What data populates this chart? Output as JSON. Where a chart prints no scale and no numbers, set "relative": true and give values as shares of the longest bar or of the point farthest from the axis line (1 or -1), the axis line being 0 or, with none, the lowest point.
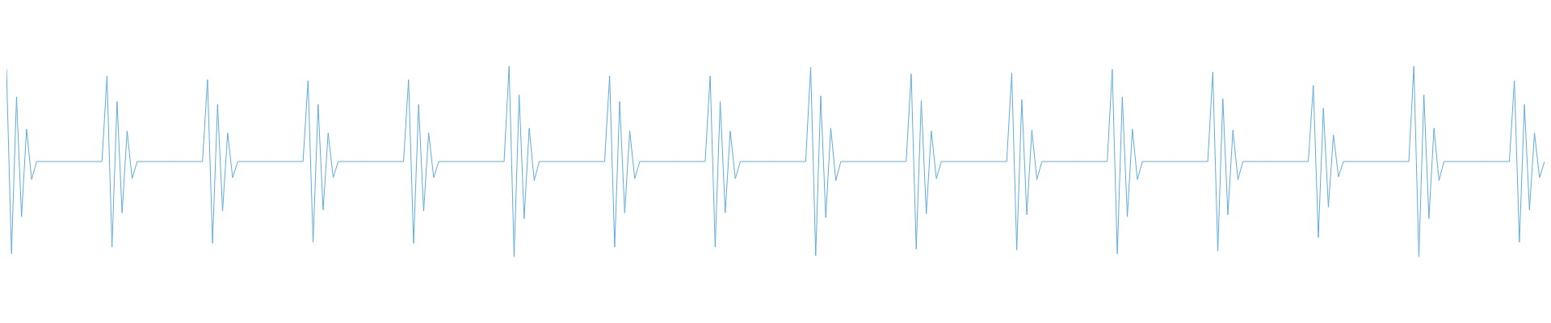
{
  "chart_data": {
    "type": "line",
    "relative": true,
    "categories": [
      null,
      null,
      null,
      null,
      null,
      null,
      null,
      null,
      null,
      null,
      null,
      null,
      null,
      null,
      null,
      null,
      null,
      null,
      null,
      null,
      null,
      null,
      null,
      null,
      null,
      null,
      null,
      null,
      null,
      null,
      null,
      null,
      null,
      null,
      null,
      null,
      null,
      null,
      null,
      null,
      null,
      null,
      null,
      null,
      null,
      null,
      null,
      null,
      null,
      null,
      null,
      null,
      null,
      null,
      null,
      null,
      null,
      null,
      null,
      null,
      null,
      null,
      null,
      null,
      null,
      null,
      null,
      null,
      null,
      null,
      null,
      null,
      null,
      null,
      null,
      null,
      null,
      null,
      null,
      null,
      null,
      null,
      null,
      null,
      null,
      null,
      null,
      null,
      null,
      null,
      null,
      null,
      null,
      null,
      null,
      null,
      null,
      null,
      null,
      null,
      null,
      null,
      null,
      null,
      null,
      null,
      null,
      null,
      null,
      null,
      null,
      null,
      null,
      null,
      null,
      null,
      null,
      null,
      null,
      null,
      null,
      null,
      null,
      null,
      null,
      null,
      null,
      null,
      null,
      null,
      null,
      null,
      null,
      null,
      null,
      null,
      null,
      null,
      null,
      null,
      null,
      null,
      null,
      null,
      null,
      null,
      null,
      null,
      null,
      null,
      null,
      null,
      null,
      null,
      null,
      null,
      null,
      null,
      null,
      null,
      null,
      null,
      null,
      null,
      null,
      null,
      null,
      null,
      null,
      null,
      null,
      null,
      null,
      null,
      null,
      null,
      null,
      null,
      null,
      null,
      null,
      null,
      null,
      null,
      null,
      null,
      null,
      null,
      null,
      null,
      null,
      null,
      null,
      null,
      null,
      null,
      null,
      null,
      null,
      null,
      null,
      null,
      null,
      null,
      null,
      null,
      null,
      null,
      null,
      null,
      null,
      null,
      null,
      null,
      null,
      null,
      null,
      null,
      null,
      null,
      null,
      null,
      null,
      null,
      null,
      null,
      null,
      null,
      null,
      null,
      null,
      null,
      null,
      null,
      null,
      null,
      null,
      null,
      null,
      null,
      null,
      null,
      null,
      null,
      null,
      null,
      null,
      null,
      null,
      null,
      null,
      null,
      null,
      null,
      null,
      null,
      null,
      null,
      null,
      null,
      null,
      null,
      null,
      null,
      null,
      null,
      null,
      null,
      null,
      null,
      null,
      null,
      null,
      null,
      null,
      null,
      null,
      null,
      null,
      null,
      null,
      null,
      null,
      null,
      null,
      null,
      null,
      null,
      null,
      null,
      null,
      null,
      null,
      null,
      null,
      null,
      null,
      null,
      null,
      null,
      null,
      null,
      null,
      null,
      null,
      null,
      null
    ],
    "series": [
      {
        "color": "#5dade2",
        "values": [
          0.985,
          0.015,
          0.84,
          0.21,
          0.67,
          0.405,
          0.5,
          0.5,
          0.5,
          0.5,
          0.5,
          0.5,
          0.5,
          0.5,
          0.5,
          0.5,
          0.5,
          0.5,
          0.5,
          0.5,
          0.95,
          0.05,
          0.815,
          0.23,
          0.66,
          0.41,
          0.5,
          0.5,
          0.5,
          0.5,
          0.5,
          0.5,
          0.5,
          0.5,
          0.5,
          0.5,
          0.5,
          0.5,
          0.5,
          0.5,
          0.93,
          0.07,
          0.8,
          0.24,
          0.65,
          0.415,
          0.5,
          0.5,
          0.5,
          0.5,
          0.5,
          0.5,
          0.5,
          0.5,
          0.5,
          0.5,
          0.5,
          0.5,
          0.5,
          0.5,
          0.925,
          0.075,
          0.8,
          0.245,
          0.65,
          0.415,
          0.5,
          0.5,
          0.5,
          0.5,
          0.5,
          0.5,
          0.5,
          0.5,
          0.5,
          0.5,
          0.5,
          0.5,
          0.5,
          0.5,
          0.93,
          0.07,
          0.8,
          0.24,
          0.65,
          0.415,
          0.5,
          0.5,
          0.5,
          0.5,
          0.5,
          0.5,
          0.5,
          0.5,
          0.5,
          0.5,
          0.5,
          0.5,
          0.5,
          0.5,
          1,
          0,
          0.85,
          0.2,
          0.675,
          0.4,
          0.5,
          0.5,
          0.5,
          0.5,
          0.5,
          0.5,
          0.5,
          0.5,
          0.5,
          0.5,
          0.5,
          0.5,
          0.5,
          0.5,
          0.95,
          0.05,
          0.815,
          0.23,
          0.66,
          0.41,
          0.5,
          0.5,
          0.5,
          0.5,
          0.5,
          0.5,
          0.5,
          0.5,
          0.5,
          0.5,
          0.5,
          0.5,
          0.5,
          0.5,
          0.95,
          0.05,
          0.815,
          0.23,
          0.66,
          0.41,
          0.5,
          0.5,
          0.5,
          0.5,
          0.5,
          0.5,
          0.5,
          0.5,
          0.5,
          0.5,
          0.5,
          0.5,
          0.5,
          0.5,
          0.995,
          0.005,
          0.845,
          0.205,
          0.675,
          0.4,
          0.5,
          0.5,
          0.5,
          0.5,
          0.5,
          0.5,
          0.5,
          0.5,
          0.5,
          0.5,
          0.5,
          0.5,
          0.5,
          0.5,
          0.96,
          0.04,
          0.82,
          0.225,
          0.66,
          0.41,
          0.5,
          0.5,
          0.5,
          0.5,
          0.5,
          0.5,
          0.5,
          0.5,
          0.5,
          0.5,
          0.5,
          0.5,
          0.5,
          0.5,
          0.965,
          0.035,
          0.825,
          0.22,
          0.665,
          0.405,
          0.5,
          0.5,
          0.5,
          0.5,
          0.5,
          0.5,
          0.5,
          0.5,
          0.5,
          0.5,
          0.5,
          0.5,
          0.5,
          0.5,
          0.985,
          0.015,
          0.84,
          0.21,
          0.67,
          0.405,
          0.5,
          0.5,
          0.5,
          0.5,
          0.5,
          0.5,
          0.5,
          0.5,
          0.5,
          0.5,
          0.5,
          0.5,
          0.5,
          0.5,
          0.97,
          0.03,
          0.83,
          0.22,
          0.665,
          0.405,
          0.5,
          0.5,
          0.5,
          0.5,
          0.5,
          0.5,
          0.5,
          0.5,
          0.5,
          0.5,
          0.5,
          0.5,
          0.5,
          0.5,
          0.9,
          0.1,
          0.78,
          0.26,
          0.64,
          0.42,
          0.5,
          0.5,
          0.5,
          0.5,
          0.5,
          0.5,
          0.5,
          0.5,
          0.5,
          0.5,
          0.5,
          0.5,
          0.5,
          0.5,
          1,
          0,
          0.85,
          0.2,
          0.675,
          0.4,
          0.5,
          0.5,
          0.5,
          0.5,
          0.5,
          0.5,
          0.5,
          0.5,
          0.5,
          0.5,
          0.5,
          0.5,
          0.5,
          0.5,
          0.925,
          0.075,
          0.8,
          0.245,
          0.65,
          0.415,
          0.5
        ]
      }
    ],
    "marker": "none"
  }
}
